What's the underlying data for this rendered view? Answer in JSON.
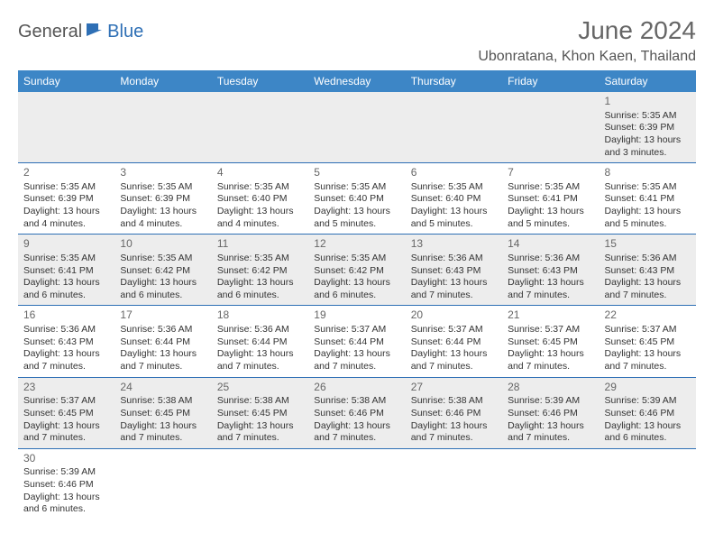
{
  "logo": {
    "text_a": "General",
    "text_b": "Blue",
    "accent_color": "#2e6fb5"
  },
  "title": "June 2024",
  "location": "Ubonratana, Khon Kaen, Thailand",
  "colors": {
    "header_bg": "#3d86c6",
    "header_text": "#ffffff",
    "border": "#2e6fb5",
    "shaded_bg": "#ededed",
    "text": "#333333",
    "muted": "#666666"
  },
  "day_headers": [
    "Sunday",
    "Monday",
    "Tuesday",
    "Wednesday",
    "Thursday",
    "Friday",
    "Saturday"
  ],
  "weeks": [
    [
      null,
      null,
      null,
      null,
      null,
      null,
      {
        "n": "1",
        "sunrise": "Sunrise: 5:35 AM",
        "sunset": "Sunset: 6:39 PM",
        "daylight": "Daylight: 13 hours and 3 minutes."
      }
    ],
    [
      {
        "n": "2",
        "sunrise": "Sunrise: 5:35 AM",
        "sunset": "Sunset: 6:39 PM",
        "daylight": "Daylight: 13 hours and 4 minutes."
      },
      {
        "n": "3",
        "sunrise": "Sunrise: 5:35 AM",
        "sunset": "Sunset: 6:39 PM",
        "daylight": "Daylight: 13 hours and 4 minutes."
      },
      {
        "n": "4",
        "sunrise": "Sunrise: 5:35 AM",
        "sunset": "Sunset: 6:40 PM",
        "daylight": "Daylight: 13 hours and 4 minutes."
      },
      {
        "n": "5",
        "sunrise": "Sunrise: 5:35 AM",
        "sunset": "Sunset: 6:40 PM",
        "daylight": "Daylight: 13 hours and 5 minutes."
      },
      {
        "n": "6",
        "sunrise": "Sunrise: 5:35 AM",
        "sunset": "Sunset: 6:40 PM",
        "daylight": "Daylight: 13 hours and 5 minutes."
      },
      {
        "n": "7",
        "sunrise": "Sunrise: 5:35 AM",
        "sunset": "Sunset: 6:41 PM",
        "daylight": "Daylight: 13 hours and 5 minutes."
      },
      {
        "n": "8",
        "sunrise": "Sunrise: 5:35 AM",
        "sunset": "Sunset: 6:41 PM",
        "daylight": "Daylight: 13 hours and 5 minutes."
      }
    ],
    [
      {
        "n": "9",
        "sunrise": "Sunrise: 5:35 AM",
        "sunset": "Sunset: 6:41 PM",
        "daylight": "Daylight: 13 hours and 6 minutes."
      },
      {
        "n": "10",
        "sunrise": "Sunrise: 5:35 AM",
        "sunset": "Sunset: 6:42 PM",
        "daylight": "Daylight: 13 hours and 6 minutes."
      },
      {
        "n": "11",
        "sunrise": "Sunrise: 5:35 AM",
        "sunset": "Sunset: 6:42 PM",
        "daylight": "Daylight: 13 hours and 6 minutes."
      },
      {
        "n": "12",
        "sunrise": "Sunrise: 5:35 AM",
        "sunset": "Sunset: 6:42 PM",
        "daylight": "Daylight: 13 hours and 6 minutes."
      },
      {
        "n": "13",
        "sunrise": "Sunrise: 5:36 AM",
        "sunset": "Sunset: 6:43 PM",
        "daylight": "Daylight: 13 hours and 7 minutes."
      },
      {
        "n": "14",
        "sunrise": "Sunrise: 5:36 AM",
        "sunset": "Sunset: 6:43 PM",
        "daylight": "Daylight: 13 hours and 7 minutes."
      },
      {
        "n": "15",
        "sunrise": "Sunrise: 5:36 AM",
        "sunset": "Sunset: 6:43 PM",
        "daylight": "Daylight: 13 hours and 7 minutes."
      }
    ],
    [
      {
        "n": "16",
        "sunrise": "Sunrise: 5:36 AM",
        "sunset": "Sunset: 6:43 PM",
        "daylight": "Daylight: 13 hours and 7 minutes."
      },
      {
        "n": "17",
        "sunrise": "Sunrise: 5:36 AM",
        "sunset": "Sunset: 6:44 PM",
        "daylight": "Daylight: 13 hours and 7 minutes."
      },
      {
        "n": "18",
        "sunrise": "Sunrise: 5:36 AM",
        "sunset": "Sunset: 6:44 PM",
        "daylight": "Daylight: 13 hours and 7 minutes."
      },
      {
        "n": "19",
        "sunrise": "Sunrise: 5:37 AM",
        "sunset": "Sunset: 6:44 PM",
        "daylight": "Daylight: 13 hours and 7 minutes."
      },
      {
        "n": "20",
        "sunrise": "Sunrise: 5:37 AM",
        "sunset": "Sunset: 6:44 PM",
        "daylight": "Daylight: 13 hours and 7 minutes."
      },
      {
        "n": "21",
        "sunrise": "Sunrise: 5:37 AM",
        "sunset": "Sunset: 6:45 PM",
        "daylight": "Daylight: 13 hours and 7 minutes."
      },
      {
        "n": "22",
        "sunrise": "Sunrise: 5:37 AM",
        "sunset": "Sunset: 6:45 PM",
        "daylight": "Daylight: 13 hours and 7 minutes."
      }
    ],
    [
      {
        "n": "23",
        "sunrise": "Sunrise: 5:37 AM",
        "sunset": "Sunset: 6:45 PM",
        "daylight": "Daylight: 13 hours and 7 minutes."
      },
      {
        "n": "24",
        "sunrise": "Sunrise: 5:38 AM",
        "sunset": "Sunset: 6:45 PM",
        "daylight": "Daylight: 13 hours and 7 minutes."
      },
      {
        "n": "25",
        "sunrise": "Sunrise: 5:38 AM",
        "sunset": "Sunset: 6:45 PM",
        "daylight": "Daylight: 13 hours and 7 minutes."
      },
      {
        "n": "26",
        "sunrise": "Sunrise: 5:38 AM",
        "sunset": "Sunset: 6:46 PM",
        "daylight": "Daylight: 13 hours and 7 minutes."
      },
      {
        "n": "27",
        "sunrise": "Sunrise: 5:38 AM",
        "sunset": "Sunset: 6:46 PM",
        "daylight": "Daylight: 13 hours and 7 minutes."
      },
      {
        "n": "28",
        "sunrise": "Sunrise: 5:39 AM",
        "sunset": "Sunset: 6:46 PM",
        "daylight": "Daylight: 13 hours and 7 minutes."
      },
      {
        "n": "29",
        "sunrise": "Sunrise: 5:39 AM",
        "sunset": "Sunset: 6:46 PM",
        "daylight": "Daylight: 13 hours and 6 minutes."
      }
    ],
    [
      {
        "n": "30",
        "sunrise": "Sunrise: 5:39 AM",
        "sunset": "Sunset: 6:46 PM",
        "daylight": "Daylight: 13 hours and 6 minutes."
      },
      null,
      null,
      null,
      null,
      null,
      null
    ]
  ]
}
